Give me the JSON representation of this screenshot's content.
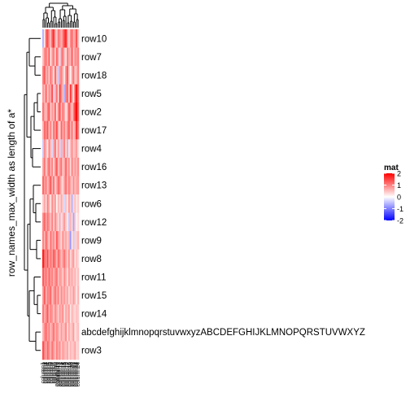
{
  "chart_data": {
    "type": "heatmap",
    "title": "",
    "ylabel": "row_names_max_width as length of a*",
    "legend": {
      "title": "mat",
      "ticks": [
        2,
        1,
        0,
        -1,
        -2
      ],
      "range": [
        -2,
        2
      ],
      "colors": {
        "low": "#0000ff",
        "mid": "#ffffff",
        "high": "#ff0000"
      },
      "placement": "right"
    },
    "rows": [
      "row10",
      "row7",
      "row18",
      "row5",
      "row2",
      "row17",
      "row4",
      "row16",
      "row13",
      "row6",
      "row12",
      "row9",
      "row8",
      "row11",
      "row15",
      "row14",
      "abcdefghijklmnopqrstuvwxyzABCDEFGHIJKLMNOPQRSTUVWXYZ",
      "row3"
    ],
    "columns": [
      "column1",
      "column2",
      "column3",
      "column4",
      "column5",
      "column6",
      "column7",
      "column8",
      "column9",
      "column10",
      "column11",
      "column12",
      "column13",
      "column14",
      "column15",
      "column16",
      "column17",
      "column18",
      "column19",
      "column20",
      "column21",
      "column22",
      "column23",
      "column24"
    ],
    "values": [
      [
        -0.6,
        0.2,
        1.2,
        1.4,
        0.8,
        0.5,
        1.3,
        1.6,
        0.7,
        0.4,
        1.1,
        0.9,
        0.6,
        1.0,
        1.5,
        1.7,
        0.8,
        0.3,
        0.9,
        1.2,
        0.6,
        0.8,
        1.4,
        0.5
      ],
      [
        0.5,
        0.9,
        1.1,
        0.6,
        1.3,
        0.2,
        0.8,
        1.0,
        0.4,
        1.2,
        0.7,
        -0.2,
        0.9,
        1.1,
        0.5,
        0.3,
        1.0,
        0.7,
        0.6,
        1.3,
        0.4,
        0.9,
        0.8,
        1.0
      ],
      [
        1.0,
        1.3,
        0.6,
        0.9,
        0.4,
        1.1,
        0.7,
        0.3,
        1.2,
        0.5,
        -0.4,
        0.8,
        1.0,
        0.6,
        0.2,
        0.9,
        1.3,
        0.5,
        0.1,
        0.7,
        1.1,
        0.4,
        0.6,
        1.0
      ],
      [
        0.8,
        0.6,
        1.2,
        0.4,
        0.9,
        0.7,
        1.4,
        -0.3,
        0.6,
        1.1,
        0.3,
        1.5,
        0.9,
        0.5,
        -0.6,
        1.0,
        1.2,
        0.4,
        1.6,
        0.8,
        0.2,
        1.3,
        1.9,
        1.1
      ],
      [
        1.1,
        0.7,
        0.5,
        1.0,
        1.3,
        0.4,
        0.8,
        0.6,
        1.2,
        0.3,
        0.9,
        1.4,
        0.5,
        1.1,
        0.7,
        0.2,
        0.6,
        1.3,
        0.9,
        0.4,
        1.0,
        1.6,
        2.0,
        1.2
      ],
      [
        0.6,
        1.2,
        0.9,
        1.3,
        0.5,
        1.0,
        0.4,
        1.1,
        0.8,
        1.4,
        0.6,
        0.3,
        1.2,
        0.7,
        1.0,
        0.5,
        0.9,
        1.3,
        0.6,
        1.1,
        0.4,
        0.8,
        1.7,
        1.0
      ],
      [
        -0.4,
        0.9,
        0.6,
        0.2,
        1.0,
        0.5,
        -0.3,
        0.7,
        1.1,
        0.3,
        0.8,
        0.4,
        -0.5,
        0.6,
        1.0,
        0.3,
        0.7,
        -0.2,
        0.5,
        0.9,
        0.4,
        0.6,
        0.8,
        0.3
      ],
      [
        0.7,
        1.1,
        0.4,
        0.8,
        1.2,
        0.6,
        1.0,
        0.3,
        0.9,
        1.3,
        0.5,
        0.8,
        1.1,
        0.4,
        0.7,
        1.2,
        0.6,
        0.9,
        0.3,
        1.0,
        0.5,
        0.8,
        0.6,
        0.9
      ],
      [
        1.2,
        0.8,
        1.0,
        0.5,
        0.9,
        1.3,
        0.6,
        1.1,
        0.4,
        0.7,
        1.2,
        0.9,
        0.5,
        0.3,
        0.8,
        1.1,
        0.6,
        1.0,
        0.7,
        0.4,
        0.9,
        0.5,
        0.7,
        0.8
      ],
      [
        0.4,
        0.7,
        0.3,
        1.0,
        0.6,
        0.2,
        0.9,
        0.5,
        0.8,
        0.1,
        0.6,
        0.3,
        0.7,
        0.4,
        -0.3,
        0.5,
        0.2,
        0.8,
        0.4,
        -0.6,
        0.3,
        0.5,
        0.2,
        0.4
      ],
      [
        0.9,
        1.2,
        0.7,
        1.1,
        0.8,
        0.5,
        1.0,
        0.4,
        0.9,
        0.6,
        0.3,
        0.7,
        -0.2,
        0.5,
        0.8,
        0.4,
        0.2,
        -0.4,
        0.6,
        0.3,
        -0.7,
        0.4,
        0.1,
        0.3
      ],
      [
        1.0,
        0.6,
        1.2,
        0.8,
        0.4,
        1.1,
        0.7,
        0.9,
        0.5,
        1.3,
        0.8,
        0.6,
        0.3,
        0.9,
        0.5,
        0.7,
        0.4,
        0.6,
        -0.8,
        0.2,
        0.5,
        -0.3,
        0.4,
        0.6
      ],
      [
        1.8,
        1.2,
        0.9,
        1.4,
        0.7,
        1.1,
        0.8,
        1.3,
        1.0,
        0.6,
        1.2,
        0.9,
        0.5,
        0.8,
        1.1,
        0.7,
        0.4,
        0.9,
        0.3,
        0.6,
        0.8,
        0.2,
        0.5,
        0.3
      ],
      [
        1.3,
        0.9,
        1.1,
        0.7,
        1.2,
        0.8,
        1.0,
        0.6,
        0.9,
        1.1,
        0.5,
        0.8,
        0.7,
        0.4,
        0.9,
        0.6,
        0.3,
        0.8,
        0.5,
        0.7,
        0.4,
        0.6,
        0.3,
        0.5
      ],
      [
        0.8,
        1.3,
        0.6,
        1.0,
        0.9,
        1.2,
        0.5,
        0.8,
        1.1,
        0.7,
        1.0,
        0.4,
        0.9,
        0.6,
        0.8,
        0.5,
        0.7,
        0.3,
        0.6,
        0.4,
        0.8,
        0.5,
        0.2,
        0.6
      ],
      [
        1.1,
        0.7,
        0.9,
        1.3,
        0.6,
        1.0,
        0.8,
        0.5,
        0.9,
        0.7,
        0.4,
        0.8,
        0.6,
        0.9,
        0.3,
        0.7,
        0.5,
        0.8,
        0.2,
        0.6,
        0.4,
        0.3,
        0.5,
        0.4
      ],
      [
        0.6,
        0.9,
        1.2,
        0.7,
        1.0,
        0.5,
        0.8,
        1.1,
        0.6,
        0.9,
        0.7,
        0.4,
        0.8,
        0.5,
        0.6,
        0.9,
        0.3,
        0.7,
        0.4,
        0.5,
        0.8,
        0.2,
        0.4,
        0.5
      ],
      [
        1.4,
        1.0,
        0.7,
        1.2,
        0.9,
        0.6,
        1.1,
        0.8,
        0.5,
        1.0,
        0.7,
        0.9,
        0.4,
        0.8,
        0.6,
        0.5,
        0.7,
        0.3,
        0.6,
        0.4,
        0.5,
        0.7,
        0.3,
        0.4
      ]
    ]
  }
}
